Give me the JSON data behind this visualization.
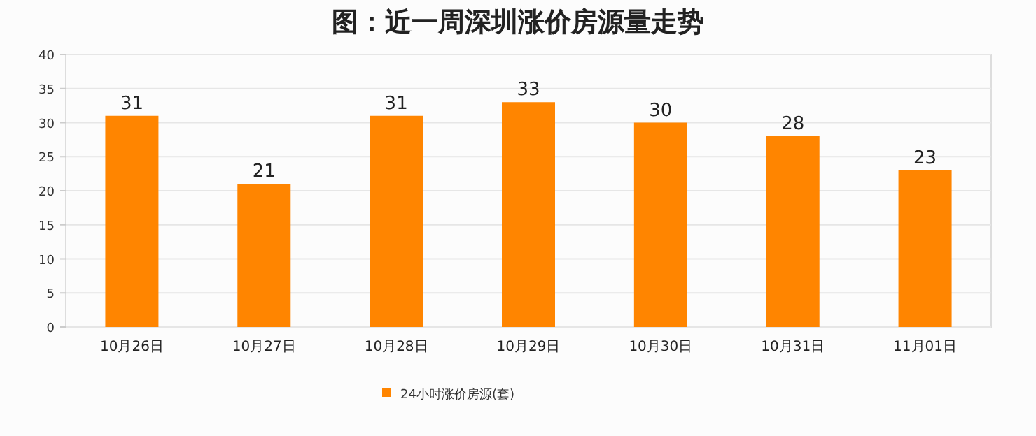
{
  "chart_data": {
    "type": "bar",
    "title": "图：近一周深圳涨价房源量走势",
    "categories": [
      "10月26日",
      "10月27日",
      "10月28日",
      "10月29日",
      "10月30日",
      "10月31日",
      "11月01日"
    ],
    "series": [
      {
        "name": "24小时涨价房源(套)",
        "color": "#ff8500",
        "values": [
          31,
          21,
          31,
          33,
          30,
          28,
          23
        ]
      }
    ],
    "ylim": [
      0,
      40
    ],
    "yticks": [
      0,
      5,
      10,
      15,
      20,
      25,
      30,
      35,
      40
    ],
    "grid": "y",
    "legend": "bottom",
    "data_labels": true
  }
}
